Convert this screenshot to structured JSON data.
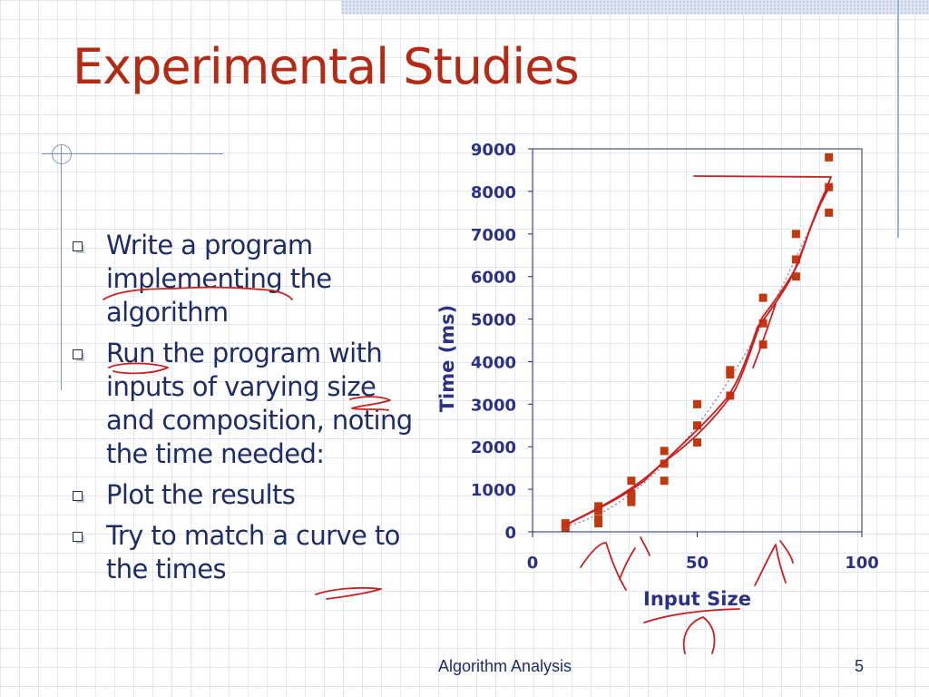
{
  "slide": {
    "title": "Experimental Studies",
    "bullets": [
      "Write a program implementing the algorithm",
      "Run the program with inputs of varying size and composition, noting the time needed:",
      "Plot the results",
      "Try to match a curve to the times"
    ],
    "footer": "Algorithm Analysis",
    "page_number": "5"
  },
  "colors": {
    "title": "#b42b15",
    "body_text": "#1f2d66",
    "axis_text": "#2b3184",
    "marker": "#c0390f",
    "annotation_ink": "#cc2020"
  },
  "chart_data": {
    "type": "scatter",
    "title": "",
    "xlabel": "Input Size",
    "ylabel": "Time (ms)",
    "xlim": [
      0,
      100
    ],
    "ylim": [
      0,
      9000
    ],
    "x_ticks": [
      "0",
      "50",
      "100"
    ],
    "y_ticks": [
      "0",
      "1000",
      "2000",
      "3000",
      "4000",
      "5000",
      "6000",
      "7000",
      "8000",
      "9000"
    ],
    "grid": false,
    "legend": "none",
    "marker": "square",
    "trendline": "dotted",
    "series": [
      {
        "points": [
          [
            10,
            100
          ],
          [
            10,
            200
          ],
          [
            20,
            200
          ],
          [
            20,
            300
          ],
          [
            20,
            500
          ],
          [
            20,
            600
          ],
          [
            30,
            700
          ],
          [
            30,
            800
          ],
          [
            30,
            900
          ],
          [
            30,
            1200
          ],
          [
            40,
            1200
          ],
          [
            40,
            1600
          ],
          [
            40,
            1900
          ],
          [
            50,
            2100
          ],
          [
            50,
            2500
          ],
          [
            50,
            3000
          ],
          [
            60,
            3200
          ],
          [
            60,
            3700
          ],
          [
            60,
            3800
          ],
          [
            70,
            4400
          ],
          [
            70,
            4900
          ],
          [
            70,
            5500
          ],
          [
            80,
            6000
          ],
          [
            80,
            6400
          ],
          [
            80,
            7000
          ],
          [
            90,
            7500
          ],
          [
            90,
            8100
          ],
          [
            90,
            8800
          ]
        ]
      }
    ]
  }
}
